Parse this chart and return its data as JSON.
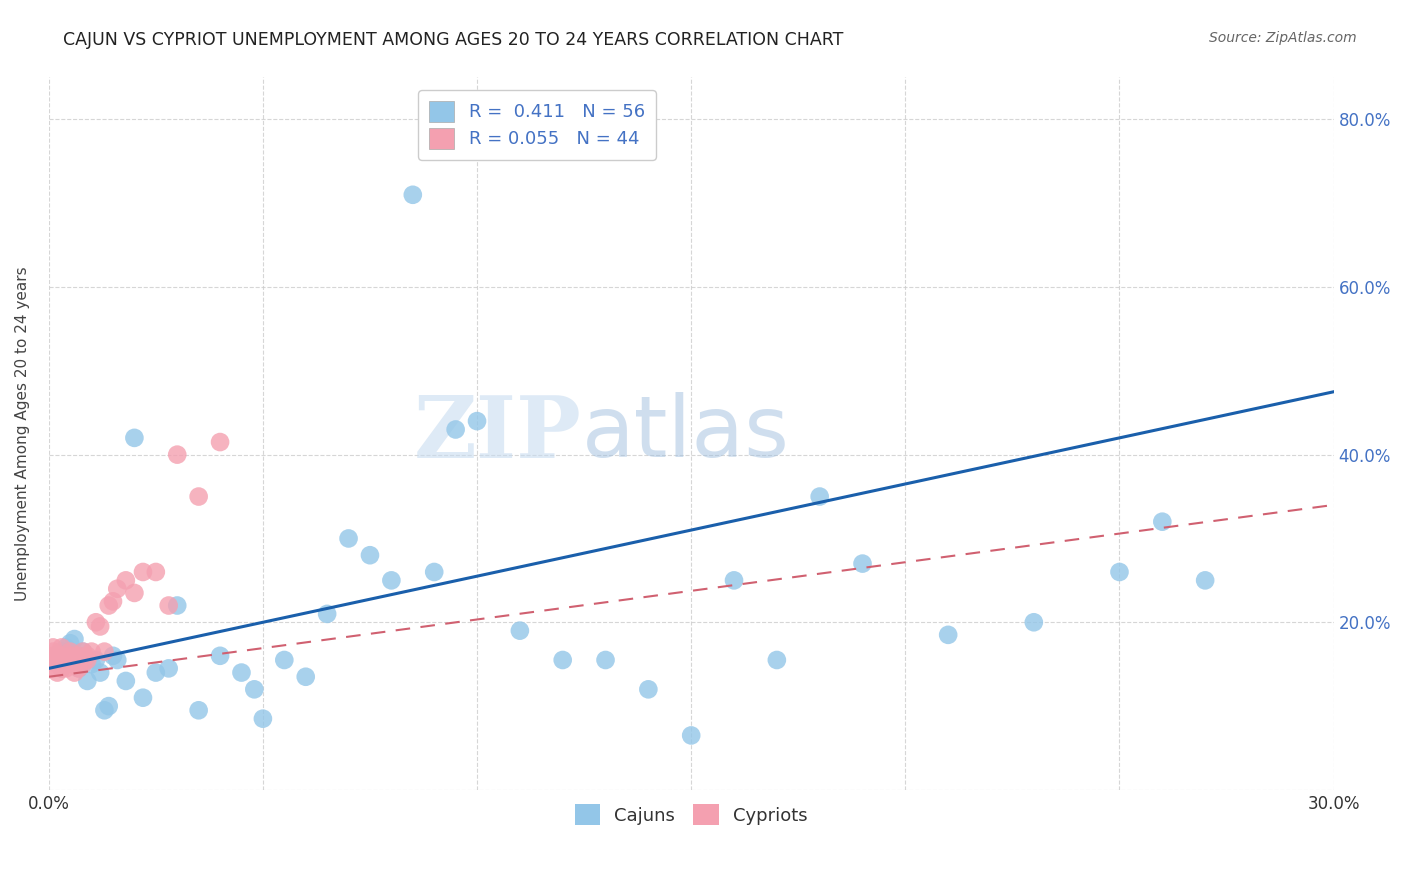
{
  "title": "CAJUN VS CYPRIOT UNEMPLOYMENT AMONG AGES 20 TO 24 YEARS CORRELATION CHART",
  "source": "Source: ZipAtlas.com",
  "ylabel": "Unemployment Among Ages 20 to 24 years",
  "xlim": [
    0.0,
    0.3
  ],
  "ylim": [
    0.0,
    0.85
  ],
  "x_ticks": [
    0.0,
    0.05,
    0.1,
    0.15,
    0.2,
    0.25,
    0.3
  ],
  "y_ticks": [
    0.0,
    0.2,
    0.4,
    0.6,
    0.8
  ],
  "cajun_R": "0.411",
  "cajun_N": "56",
  "cypriot_R": "0.055",
  "cypriot_N": "44",
  "cajun_color": "#93C6E8",
  "cypriot_color": "#F4A0B0",
  "cajun_line_color": "#1A5FAB",
  "cypriot_line_color": "#D06070",
  "legend_label_cajun": "Cajuns",
  "legend_label_cypriot": "Cypriots",
  "watermark_zip": "ZIP",
  "watermark_atlas": "atlas",
  "cajun_x": [
    0.001,
    0.002,
    0.003,
    0.003,
    0.004,
    0.004,
    0.005,
    0.005,
    0.006,
    0.006,
    0.007,
    0.007,
    0.008,
    0.009,
    0.01,
    0.011,
    0.012,
    0.013,
    0.014,
    0.015,
    0.016,
    0.018,
    0.02,
    0.022,
    0.025,
    0.028,
    0.03,
    0.035,
    0.04,
    0.045,
    0.048,
    0.05,
    0.055,
    0.06,
    0.065,
    0.07,
    0.075,
    0.08,
    0.085,
    0.09,
    0.095,
    0.1,
    0.11,
    0.12,
    0.13,
    0.14,
    0.15,
    0.16,
    0.17,
    0.18,
    0.19,
    0.21,
    0.23,
    0.25,
    0.26,
    0.27
  ],
  "cajun_y": [
    0.155,
    0.16,
    0.145,
    0.165,
    0.15,
    0.17,
    0.155,
    0.175,
    0.16,
    0.18,
    0.145,
    0.16,
    0.165,
    0.13,
    0.15,
    0.155,
    0.14,
    0.095,
    0.1,
    0.16,
    0.155,
    0.13,
    0.42,
    0.11,
    0.14,
    0.145,
    0.22,
    0.095,
    0.16,
    0.14,
    0.12,
    0.085,
    0.155,
    0.135,
    0.21,
    0.3,
    0.28,
    0.25,
    0.71,
    0.26,
    0.43,
    0.44,
    0.19,
    0.155,
    0.155,
    0.12,
    0.065,
    0.25,
    0.155,
    0.35,
    0.27,
    0.185,
    0.2,
    0.26,
    0.32,
    0.25
  ],
  "cypriot_x": [
    0.001,
    0.001,
    0.001,
    0.001,
    0.001,
    0.002,
    0.002,
    0.002,
    0.002,
    0.003,
    0.003,
    0.003,
    0.003,
    0.004,
    0.004,
    0.004,
    0.005,
    0.005,
    0.005,
    0.006,
    0.006,
    0.006,
    0.007,
    0.007,
    0.007,
    0.008,
    0.008,
    0.009,
    0.009,
    0.01,
    0.011,
    0.012,
    0.013,
    0.014,
    0.015,
    0.016,
    0.018,
    0.02,
    0.022,
    0.025,
    0.028,
    0.03,
    0.035,
    0.04
  ],
  "cypriot_y": [
    0.155,
    0.16,
    0.165,
    0.17,
    0.145,
    0.15,
    0.155,
    0.14,
    0.16,
    0.145,
    0.155,
    0.16,
    0.17,
    0.15,
    0.155,
    0.145,
    0.16,
    0.155,
    0.165,
    0.14,
    0.15,
    0.16,
    0.145,
    0.155,
    0.16,
    0.15,
    0.165,
    0.155,
    0.16,
    0.165,
    0.2,
    0.195,
    0.165,
    0.22,
    0.225,
    0.24,
    0.25,
    0.235,
    0.26,
    0.26,
    0.22,
    0.4,
    0.35,
    0.415
  ]
}
